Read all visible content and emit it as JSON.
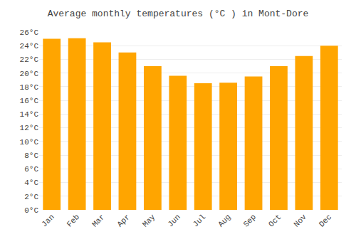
{
  "chart_data": {
    "type": "bar",
    "title": "Average monthly temperatures (°C ) in Mont-Dore",
    "categories": [
      "Jan",
      "Feb",
      "Mar",
      "Apr",
      "May",
      "Jun",
      "Jul",
      "Aug",
      "Sep",
      "Oct",
      "Nov",
      "Dec"
    ],
    "values": [
      25.0,
      25.1,
      24.5,
      23.0,
      21.0,
      19.6,
      18.5,
      18.6,
      19.5,
      21.0,
      22.5,
      24.0
    ],
    "color": "#FFA500",
    "ylim": [
      0,
      26
    ],
    "yticks": [
      {
        "value": 0,
        "label": "0°C"
      },
      {
        "value": 2,
        "label": "2°C"
      },
      {
        "value": 4,
        "label": "4°C"
      },
      {
        "value": 6,
        "label": "6°C"
      },
      {
        "value": 8,
        "label": "8°C"
      },
      {
        "value": 10,
        "label": "10°C"
      },
      {
        "value": 12,
        "label": "12°C"
      },
      {
        "value": 14,
        "label": "14°C"
      },
      {
        "value": 16,
        "label": "16°C"
      },
      {
        "value": 18,
        "label": "18°C"
      },
      {
        "value": 20,
        "label": "20°C"
      },
      {
        "value": 22,
        "label": "22°C"
      },
      {
        "value": 24,
        "label": "24°C"
      },
      {
        "value": 26,
        "label": "26°C"
      }
    ],
    "grid": true
  }
}
